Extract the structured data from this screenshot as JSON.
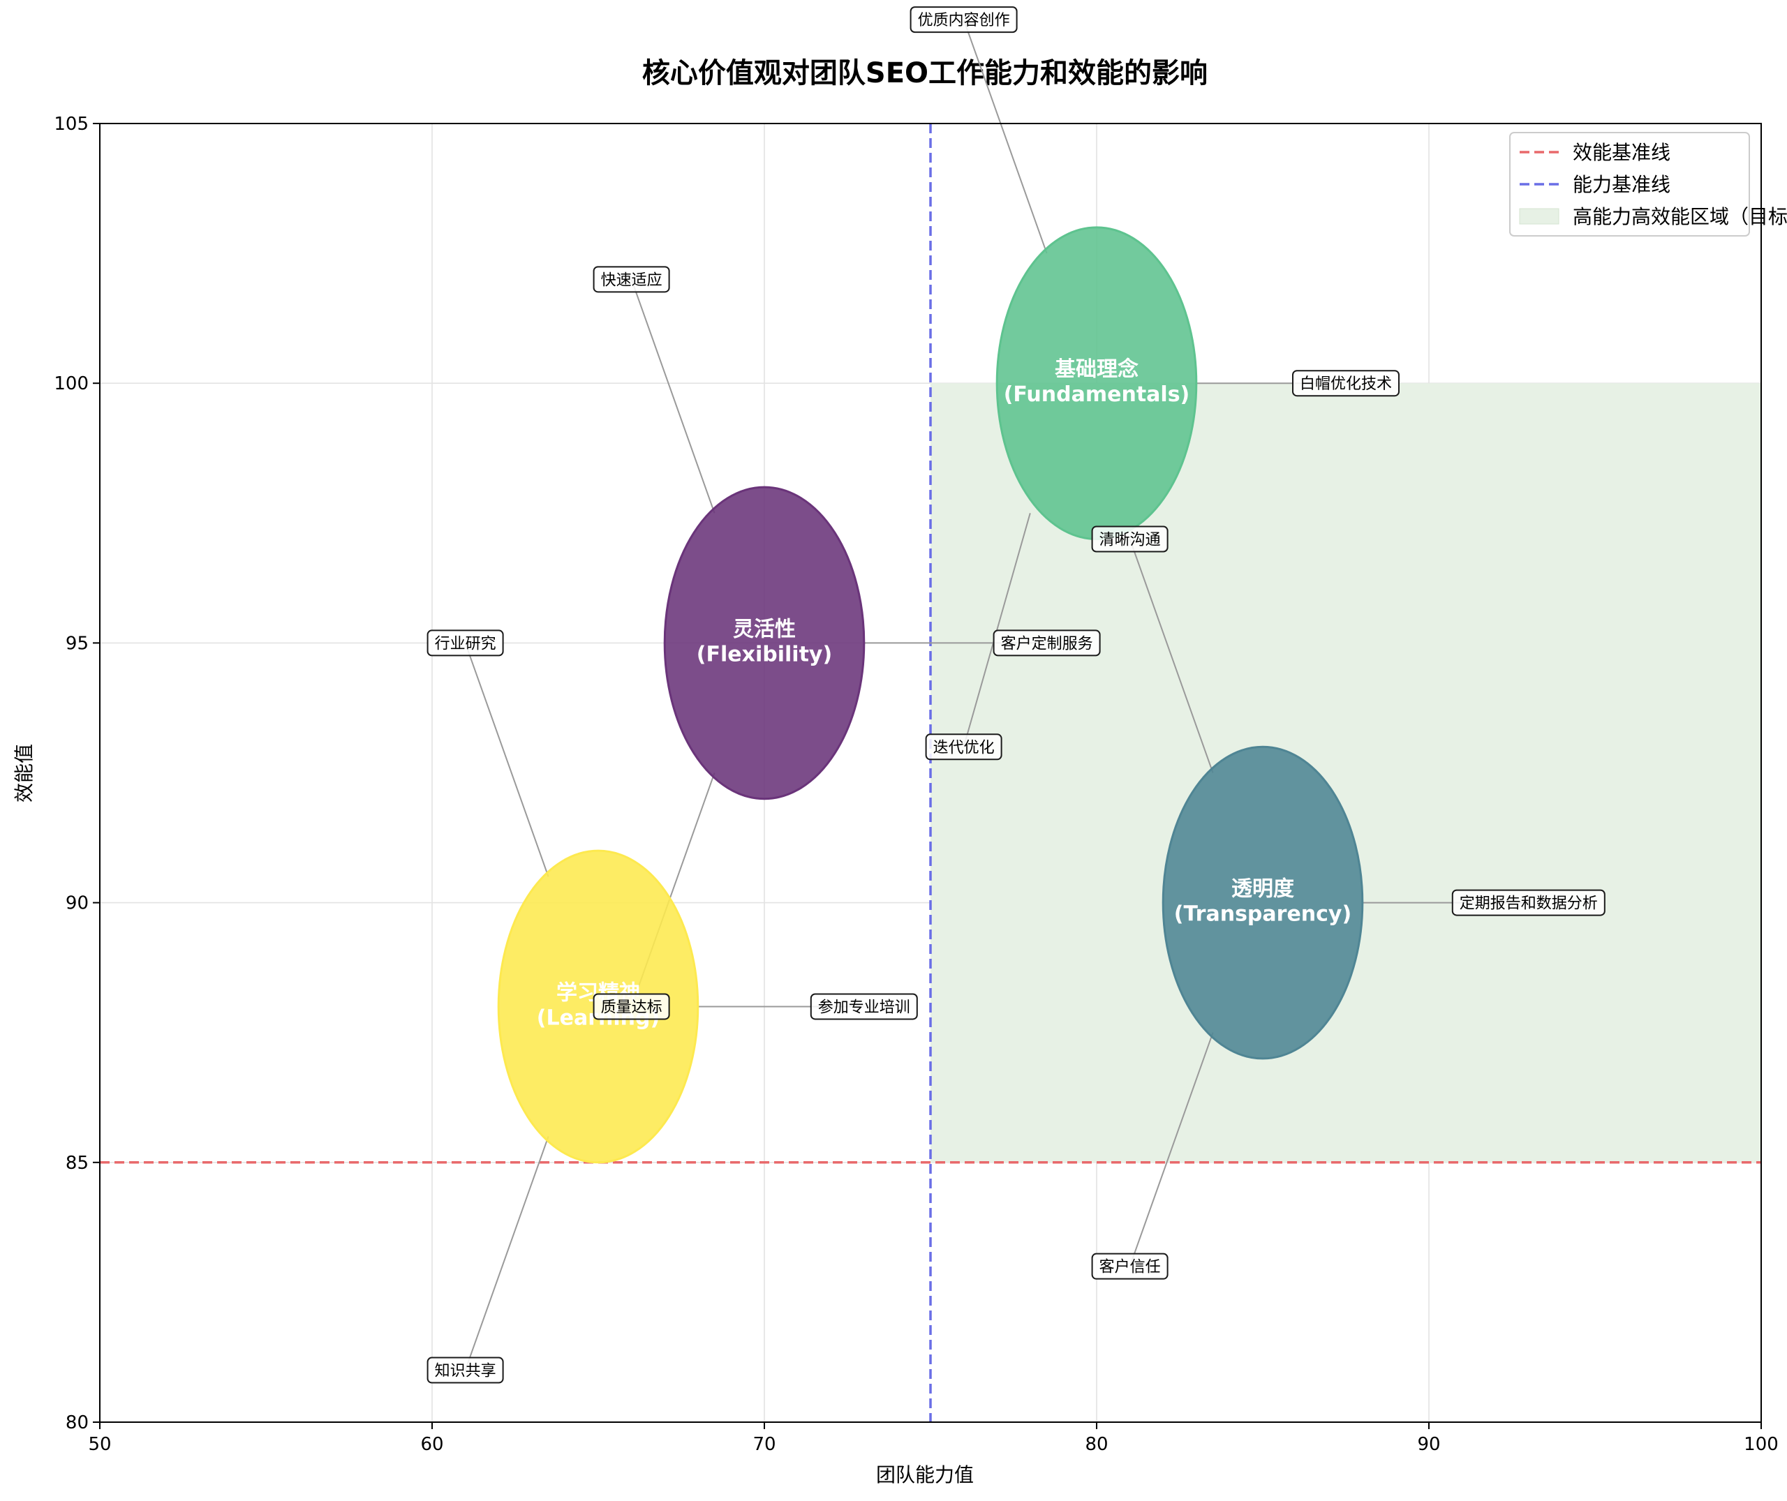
{
  "chart_data": {
    "type": "scatter",
    "title": "核心价值观对团队SEO工作能力和效能的影响",
    "xlabel": "团队能力值",
    "ylabel": "效能值",
    "xlim": [
      50,
      100
    ],
    "ylim": [
      80,
      105
    ],
    "xticks": [
      50,
      60,
      70,
      80,
      90,
      100
    ],
    "yticks": [
      80,
      85,
      90,
      95,
      100,
      105
    ],
    "grid": true,
    "legend_position": "top-right",
    "bubbles": [
      {
        "name": "灵活性\n(Flexibility)",
        "x": 70,
        "y": 95,
        "rx": 3,
        "ry": 3,
        "color": "#6a347a"
      },
      {
        "name": "基础理念\n(Fundamentals)",
        "x": 80,
        "y": 100,
        "rx": 3,
        "ry": 3,
        "color": "#5ec38f"
      },
      {
        "name": "透明度\n(Transparency)",
        "x": 85,
        "y": 90,
        "rx": 3,
        "ry": 3,
        "color": "#4f8594"
      },
      {
        "name": "学习精神\n(Learning)",
        "x": 65,
        "y": 88,
        "rx": 3,
        "ry": 3,
        "color": "#fde94f"
      }
    ],
    "annotations": [
      {
        "text": "快速适应",
        "x": 66,
        "y": 102,
        "from_x": 68.5,
        "from_y": 97.5
      },
      {
        "text": "客户定制服务",
        "x": 78.5,
        "y": 95,
        "from_x": 73,
        "from_y": 95
      },
      {
        "text": "迭代优化",
        "x": 76,
        "y": 93,
        "from_x": 78,
        "from_y": 97.5
      },
      {
        "text": "优质内容创作",
        "x": 76,
        "y": 107,
        "from_x": 78.5,
        "from_y": 102.5
      },
      {
        "text": "白帽优化技术",
        "x": 87.5,
        "y": 100,
        "from_x": 83,
        "from_y": 100
      },
      {
        "text": "质量达标",
        "x": 66,
        "y": 88,
        "from_x": 68.5,
        "from_y": 92.5
      },
      {
        "text": "清晰沟通",
        "x": 81,
        "y": 97,
        "from_x": 83.5,
        "from_y": 92.5
      },
      {
        "text": "定期报告和数据分析",
        "x": 93,
        "y": 90,
        "from_x": 88,
        "from_y": 90
      },
      {
        "text": "客户信任",
        "x": 81,
        "y": 83,
        "from_x": 83.5,
        "from_y": 87.5
      },
      {
        "text": "行业研究",
        "x": 61,
        "y": 95,
        "from_x": 63.5,
        "from_y": 90.5
      },
      {
        "text": "参加专业培训",
        "x": 73,
        "y": 88,
        "from_x": 68,
        "from_y": 88
      },
      {
        "text": "知识共享",
        "x": 61,
        "y": 81,
        "from_x": 63.5,
        "from_y": 85.5
      }
    ],
    "reference_lines": [
      {
        "label": "效能基准线",
        "axis": "y",
        "value": 85,
        "color": "#e8696b",
        "style": "dashed"
      },
      {
        "label": "能力基准线",
        "axis": "x",
        "value": 75,
        "color": "#6a6ee6",
        "style": "dashed"
      }
    ],
    "regions": [
      {
        "label": "高能力高效能区域（目标）",
        "x_range": [
          75,
          100
        ],
        "y_range": [
          85,
          100
        ],
        "color": "#e7f1e5"
      }
    ]
  }
}
